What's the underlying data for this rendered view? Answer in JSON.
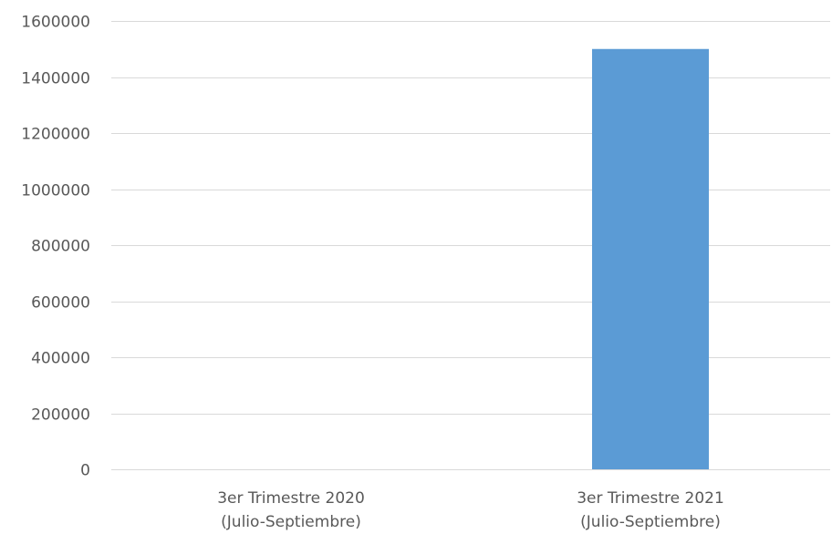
{
  "chart_data": {
    "type": "bar",
    "title": "",
    "xlabel": "",
    "ylabel": "",
    "categories": [
      [
        "3er Trimestre 2020",
        "(Julio-Septiembre)"
      ],
      [
        "3er Trimestre 2021",
        "(Julio-Septiembre)"
      ]
    ],
    "values": [
      0,
      1500000
    ],
    "ylim": [
      0,
      1600000
    ],
    "yticks": [
      0,
      200000,
      400000,
      600000,
      800000,
      1000000,
      1200000,
      1400000,
      1600000
    ],
    "grid": true,
    "legend": "none",
    "colors": {
      "bar": "#5b9bd5",
      "grid": "#d9d9d9",
      "text": "#595959"
    }
  }
}
